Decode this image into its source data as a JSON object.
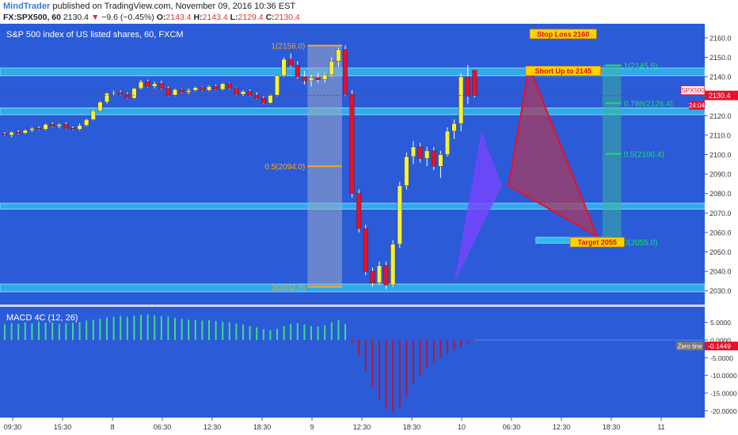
{
  "header": {
    "author": "MindTrader",
    "published_text": "published on TradingView.com, November 09, 2016 10:36 EST",
    "symbol": "FX:SPX500, 60",
    "last": "2130.4",
    "change": "−9.6 (−0.45%)",
    "o_label": "O:",
    "o": "2143.4",
    "h_label": "H:",
    "h": "2143.4",
    "l_label": "L:",
    "l": "2129.4",
    "c_label": "C:",
    "c": "2130.4"
  },
  "colors": {
    "bg": "#2b5bd7",
    "zone": "#32b8f0",
    "fib": "#f5a623",
    "fib_green": "#22dd66",
    "bull": "#f5f03a",
    "bear": "#e8102a",
    "pattern_red": "#a83a5f",
    "pattern_violet": "#7a44ff",
    "macd_pos": "#3ddc84",
    "macd_neg": "#b2183a",
    "axis_bg": "#ffffff"
  },
  "chart_data": [
    {
      "type": "candlestick",
      "title": "S&P 500 index of US listed shares, 60, FXCM",
      "ylim": [
        2025,
        2164
      ],
      "y_ticks": [
        2030.0,
        2040.0,
        2050.0,
        2060.0,
        2070.0,
        2080.0,
        2090.0,
        2100.0,
        2110.0,
        2120.0,
        2130.0,
        2140.0,
        2150.0,
        2160.0
      ],
      "x_ticks": [
        "09:30",
        "15:30",
        "8",
        "06:30",
        "12:30",
        "18:30",
        "9",
        "12:30",
        "18:30",
        "10",
        "06:30",
        "12:30",
        "18:30",
        "11"
      ],
      "last_price_label": "SPX500",
      "last_price": 2130.4,
      "countdown": "24:04",
      "candles": [
        [
          2110.5,
          2111.5,
          2109.5,
          2110
        ],
        [
          2110,
          2112,
          2109,
          2111.5
        ],
        [
          2111.5,
          2112.5,
          2110.5,
          2111
        ],
        [
          2111,
          2113,
          2110.5,
          2112.5
        ],
        [
          2112.5,
          2114,
          2111.5,
          2113.5
        ],
        [
          2113.5,
          2114.5,
          2112.5,
          2113
        ],
        [
          2113,
          2116,
          2112.5,
          2115.5
        ],
        [
          2115.5,
          2116.5,
          2114,
          2114.5
        ],
        [
          2114.5,
          2116,
          2113.5,
          2115.5
        ],
        [
          2115.5,
          2116.5,
          2113,
          2113.5
        ],
        [
          2113.5,
          2114.5,
          2112.5,
          2113
        ],
        [
          2113,
          2116,
          2112.5,
          2115
        ],
        [
          2115,
          2118.5,
          2114.5,
          2118
        ],
        [
          2118,
          2123,
          2117.5,
          2122.5
        ],
        [
          2122.5,
          2127.5,
          2122,
          2127
        ],
        [
          2127,
          2132,
          2126,
          2131.5
        ],
        [
          2131.5,
          2133,
          2130.5,
          2132
        ],
        [
          2132,
          2133,
          2130.5,
          2131
        ],
        [
          2131,
          2132,
          2128.5,
          2129
        ],
        [
          2129,
          2134.5,
          2128.5,
          2134
        ],
        [
          2134,
          2138.5,
          2133.5,
          2137.5
        ],
        [
          2137.5,
          2138.5,
          2134.5,
          2135
        ],
        [
          2135,
          2137.5,
          2134,
          2136.5
        ],
        [
          2136.5,
          2138,
          2133.5,
          2134
        ],
        [
          2134,
          2135,
          2130,
          2130.5
        ],
        [
          2130.5,
          2134,
          2130,
          2133.5
        ],
        [
          2133.5,
          2134,
          2131.5,
          2132
        ],
        [
          2132,
          2134,
          2131,
          2133
        ],
        [
          2133,
          2135,
          2132.5,
          2134.5
        ],
        [
          2134.5,
          2135,
          2132.5,
          2133
        ],
        [
          2133,
          2135.5,
          2132.5,
          2135
        ],
        [
          2135,
          2136,
          2133,
          2133.5
        ],
        [
          2133.5,
          2137,
          2133,
          2136.5
        ],
        [
          2136.5,
          2137,
          2133.5,
          2134
        ],
        [
          2134,
          2134.5,
          2130.5,
          2131
        ],
        [
          2131,
          2133,
          2130,
          2132.5
        ],
        [
          2132.5,
          2133.5,
          2130,
          2130.5
        ],
        [
          2130.5,
          2132,
          2128.5,
          2129
        ],
        [
          2129,
          2130,
          2126,
          2126.5
        ],
        [
          2126.5,
          2131,
          2126,
          2130.5
        ],
        [
          2130.5,
          2141,
          2130,
          2140.5
        ],
        [
          2140.5,
          2150,
          2140,
          2149
        ],
        [
          2149,
          2152,
          2145,
          2146
        ],
        [
          2146,
          2148,
          2139,
          2140
        ],
        [
          2140,
          2143,
          2136,
          2138
        ],
        [
          2138,
          2141,
          2135,
          2139.5
        ],
        [
          2139.5,
          2142,
          2137,
          2138.5
        ],
        [
          2138.5,
          2142,
          2137,
          2141
        ],
        [
          2141,
          2150,
          2140,
          2148
        ],
        [
          2148,
          2155,
          2145,
          2154
        ],
        [
          2154,
          2156,
          2130,
          2131
        ],
        [
          2131,
          2133,
          2078,
          2080
        ],
        [
          2080,
          2082,
          2060,
          2062
        ],
        [
          2062,
          2064,
          2038,
          2040
        ],
        [
          2040,
          2042,
          2032,
          2034
        ],
        [
          2034,
          2045,
          2033,
          2043
        ],
        [
          2043,
          2045,
          2031,
          2033
        ],
        [
          2033,
          2056,
          2032,
          2054
        ],
        [
          2054,
          2086,
          2052,
          2084
        ],
        [
          2084,
          2101,
          2082,
          2099
        ],
        [
          2099,
          2107,
          2095,
          2104
        ],
        [
          2104,
          2106,
          2096,
          2098
        ],
        [
          2098,
          2104,
          2094,
          2102
        ],
        [
          2102,
          2104,
          2092,
          2094
        ],
        [
          2094,
          2102,
          2088,
          2100
        ],
        [
          2100,
          2114,
          2099,
          2112
        ],
        [
          2112,
          2118,
          2108,
          2116
        ],
        [
          2116,
          2142,
          2112,
          2140
        ],
        [
          2140,
          2146,
          2126,
          2130
        ],
        [
          2143.4,
          2143.4,
          2129.4,
          2130.4
        ]
      ],
      "zones": [
        {
          "from": 2140.5,
          "to": 2144.5
        },
        {
          "from": 2120.5,
          "to": 2124
        },
        {
          "from": 2072,
          "to": 2075
        },
        {
          "from": 2029.5,
          "to": 2033.5
        }
      ],
      "fib_left": [
        {
          "label": "1(2156.0)",
          "value": 2156.0
        },
        {
          "label": "0.5(2094.0)",
          "value": 2094.0
        },
        {
          "label": "0(2032.0)",
          "value": 2032.0
        }
      ],
      "fib_right": [
        {
          "label": "1(2145.9)",
          "value": 2145.9
        },
        {
          "label": "0.786(2126.4)",
          "value": 2126.4
        },
        {
          "label": "0.5(2100.4)",
          "value": 2100.4
        },
        {
          "label": "0(2055.0)",
          "value": 2055.0
        }
      ],
      "pattern": {
        "red_triangle": [
          [
            74,
            2084
          ],
          [
            77,
            2145
          ],
          [
            87,
            2058
          ]
        ],
        "violet": [
          [
            66,
            2034
          ],
          [
            70,
            2112
          ],
          [
            73,
            2084
          ]
        ]
      },
      "labels": [
        {
          "text": "Stop Loss 2160",
          "bar": 82,
          "value": 2162
        },
        {
          "text": "Short Up to 2145",
          "bar": 82,
          "value": 2143
        },
        {
          "text": "Target 2055",
          "bar": 87,
          "value": 2055
        }
      ]
    },
    {
      "type": "bar",
      "title": "MACD 4C (12, 26)",
      "ylim": [
        -21.5,
        8.5
      ],
      "y_ticks": [
        "5.0000",
        "0.0000",
        "-5.0000",
        "-10.0000",
        "-15.0000",
        "-20.0000"
      ],
      "y_tick_values": [
        5,
        0,
        -5,
        -10,
        -15,
        -20
      ],
      "zero_label": "Zero line",
      "current_value": "-0.1449",
      "values": [
        4.5,
        4.8,
        4.6,
        5.0,
        4.7,
        5.2,
        4.9,
        5.0,
        4.6,
        4.8,
        4.9,
        5.1,
        5.5,
        5.8,
        6.0,
        6.4,
        6.6,
        6.8,
        6.6,
        6.9,
        7.1,
        7.3,
        7.0,
        6.8,
        6.6,
        6.3,
        6.0,
        5.8,
        5.7,
        5.5,
        5.6,
        5.4,
        5.2,
        5.0,
        4.7,
        4.4,
        4.0,
        3.6,
        3.1,
        2.8,
        3.2,
        4.0,
        4.6,
        4.8,
        4.4,
        4.0,
        3.8,
        4.2,
        5.0,
        5.6,
        4.5,
        -0.8,
        -4.5,
        -9.0,
        -13.5,
        -17.0,
        -19.5,
        -20.5,
        -19.0,
        -16.0,
        -12.5,
        -10.0,
        -8.0,
        -6.5,
        -5.0,
        -3.8,
        -2.8,
        -1.8,
        -1.0,
        -0.1449
      ]
    }
  ]
}
